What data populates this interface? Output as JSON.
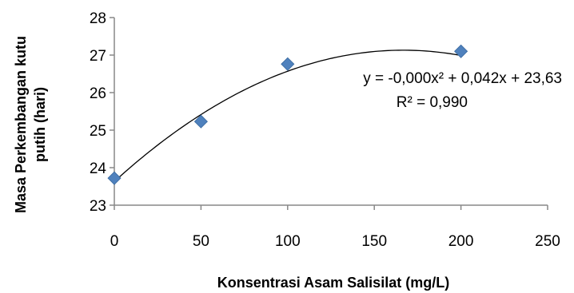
{
  "chart_data": {
    "type": "scatter",
    "xlabel": "Konsentrasi Asam Salisilat (mg/L)",
    "ylabel_lines": [
      "Masa Perkembangan kutu",
      "putih (hari)"
    ],
    "xlim": [
      0,
      250
    ],
    "ylim": [
      23,
      28
    ],
    "xticks": [
      "0",
      "50",
      "100",
      "150",
      "200",
      "250"
    ],
    "yticks": [
      "23",
      "24",
      "25",
      "26",
      "27",
      "28"
    ],
    "points": [
      {
        "x": 0,
        "y": 23.72
      },
      {
        "x": 50,
        "y": 25.23
      },
      {
        "x": 100,
        "y": 26.76
      },
      {
        "x": 200,
        "y": 27.1
      }
    ],
    "trendline": {
      "type": "polynomial",
      "coefficients": {
        "a": -0.000126,
        "b": 0.042,
        "c": 23.63
      },
      "equation_text": "y = -0,000x² + 0,042x + 23,63",
      "r2_text": "R² = 0,990"
    },
    "marker_color": "#4F81BD",
    "marker_shape": "diamond",
    "grid": false,
    "legend": "none"
  }
}
